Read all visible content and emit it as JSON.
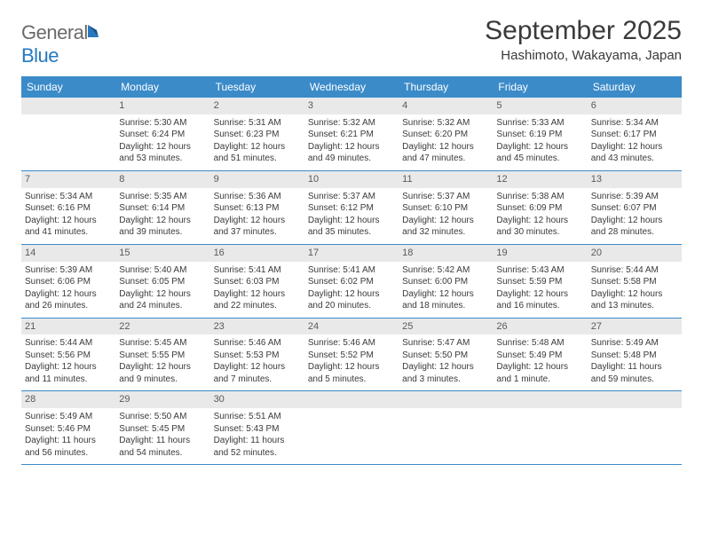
{
  "logo": {
    "word1": "General",
    "word2": "Blue"
  },
  "title": "September 2025",
  "location": "Hashimoto, Wakayama, Japan",
  "colors": {
    "headerBg": "#3b8bc9",
    "headerText": "#ffffff",
    "dayBarBg": "#e9e9e9",
    "borderColor": "#3b8bc9",
    "textColor": "#3a3a3a",
    "logoGray": "#6a6a6a",
    "logoBlue": "#2678c0"
  },
  "dayNames": [
    "Sunday",
    "Monday",
    "Tuesday",
    "Wednesday",
    "Thursday",
    "Friday",
    "Saturday"
  ],
  "weeks": [
    [
      null,
      {
        "n": "1",
        "sr": "Sunrise: 5:30 AM",
        "ss": "Sunset: 6:24 PM",
        "dl": "Daylight: 12 hours and 53 minutes."
      },
      {
        "n": "2",
        "sr": "Sunrise: 5:31 AM",
        "ss": "Sunset: 6:23 PM",
        "dl": "Daylight: 12 hours and 51 minutes."
      },
      {
        "n": "3",
        "sr": "Sunrise: 5:32 AM",
        "ss": "Sunset: 6:21 PM",
        "dl": "Daylight: 12 hours and 49 minutes."
      },
      {
        "n": "4",
        "sr": "Sunrise: 5:32 AM",
        "ss": "Sunset: 6:20 PM",
        "dl": "Daylight: 12 hours and 47 minutes."
      },
      {
        "n": "5",
        "sr": "Sunrise: 5:33 AM",
        "ss": "Sunset: 6:19 PM",
        "dl": "Daylight: 12 hours and 45 minutes."
      },
      {
        "n": "6",
        "sr": "Sunrise: 5:34 AM",
        "ss": "Sunset: 6:17 PM",
        "dl": "Daylight: 12 hours and 43 minutes."
      }
    ],
    [
      {
        "n": "7",
        "sr": "Sunrise: 5:34 AM",
        "ss": "Sunset: 6:16 PM",
        "dl": "Daylight: 12 hours and 41 minutes."
      },
      {
        "n": "8",
        "sr": "Sunrise: 5:35 AM",
        "ss": "Sunset: 6:14 PM",
        "dl": "Daylight: 12 hours and 39 minutes."
      },
      {
        "n": "9",
        "sr": "Sunrise: 5:36 AM",
        "ss": "Sunset: 6:13 PM",
        "dl": "Daylight: 12 hours and 37 minutes."
      },
      {
        "n": "10",
        "sr": "Sunrise: 5:37 AM",
        "ss": "Sunset: 6:12 PM",
        "dl": "Daylight: 12 hours and 35 minutes."
      },
      {
        "n": "11",
        "sr": "Sunrise: 5:37 AM",
        "ss": "Sunset: 6:10 PM",
        "dl": "Daylight: 12 hours and 32 minutes."
      },
      {
        "n": "12",
        "sr": "Sunrise: 5:38 AM",
        "ss": "Sunset: 6:09 PM",
        "dl": "Daylight: 12 hours and 30 minutes."
      },
      {
        "n": "13",
        "sr": "Sunrise: 5:39 AM",
        "ss": "Sunset: 6:07 PM",
        "dl": "Daylight: 12 hours and 28 minutes."
      }
    ],
    [
      {
        "n": "14",
        "sr": "Sunrise: 5:39 AM",
        "ss": "Sunset: 6:06 PM",
        "dl": "Daylight: 12 hours and 26 minutes."
      },
      {
        "n": "15",
        "sr": "Sunrise: 5:40 AM",
        "ss": "Sunset: 6:05 PM",
        "dl": "Daylight: 12 hours and 24 minutes."
      },
      {
        "n": "16",
        "sr": "Sunrise: 5:41 AM",
        "ss": "Sunset: 6:03 PM",
        "dl": "Daylight: 12 hours and 22 minutes."
      },
      {
        "n": "17",
        "sr": "Sunrise: 5:41 AM",
        "ss": "Sunset: 6:02 PM",
        "dl": "Daylight: 12 hours and 20 minutes."
      },
      {
        "n": "18",
        "sr": "Sunrise: 5:42 AM",
        "ss": "Sunset: 6:00 PM",
        "dl": "Daylight: 12 hours and 18 minutes."
      },
      {
        "n": "19",
        "sr": "Sunrise: 5:43 AM",
        "ss": "Sunset: 5:59 PM",
        "dl": "Daylight: 12 hours and 16 minutes."
      },
      {
        "n": "20",
        "sr": "Sunrise: 5:44 AM",
        "ss": "Sunset: 5:58 PM",
        "dl": "Daylight: 12 hours and 13 minutes."
      }
    ],
    [
      {
        "n": "21",
        "sr": "Sunrise: 5:44 AM",
        "ss": "Sunset: 5:56 PM",
        "dl": "Daylight: 12 hours and 11 minutes."
      },
      {
        "n": "22",
        "sr": "Sunrise: 5:45 AM",
        "ss": "Sunset: 5:55 PM",
        "dl": "Daylight: 12 hours and 9 minutes."
      },
      {
        "n": "23",
        "sr": "Sunrise: 5:46 AM",
        "ss": "Sunset: 5:53 PM",
        "dl": "Daylight: 12 hours and 7 minutes."
      },
      {
        "n": "24",
        "sr": "Sunrise: 5:46 AM",
        "ss": "Sunset: 5:52 PM",
        "dl": "Daylight: 12 hours and 5 minutes."
      },
      {
        "n": "25",
        "sr": "Sunrise: 5:47 AM",
        "ss": "Sunset: 5:50 PM",
        "dl": "Daylight: 12 hours and 3 minutes."
      },
      {
        "n": "26",
        "sr": "Sunrise: 5:48 AM",
        "ss": "Sunset: 5:49 PM",
        "dl": "Daylight: 12 hours and 1 minute."
      },
      {
        "n": "27",
        "sr": "Sunrise: 5:49 AM",
        "ss": "Sunset: 5:48 PM",
        "dl": "Daylight: 11 hours and 59 minutes."
      }
    ],
    [
      {
        "n": "28",
        "sr": "Sunrise: 5:49 AM",
        "ss": "Sunset: 5:46 PM",
        "dl": "Daylight: 11 hours and 56 minutes."
      },
      {
        "n": "29",
        "sr": "Sunrise: 5:50 AM",
        "ss": "Sunset: 5:45 PM",
        "dl": "Daylight: 11 hours and 54 minutes."
      },
      {
        "n": "30",
        "sr": "Sunrise: 5:51 AM",
        "ss": "Sunset: 5:43 PM",
        "dl": "Daylight: 11 hours and 52 minutes."
      },
      null,
      null,
      null,
      null
    ]
  ]
}
